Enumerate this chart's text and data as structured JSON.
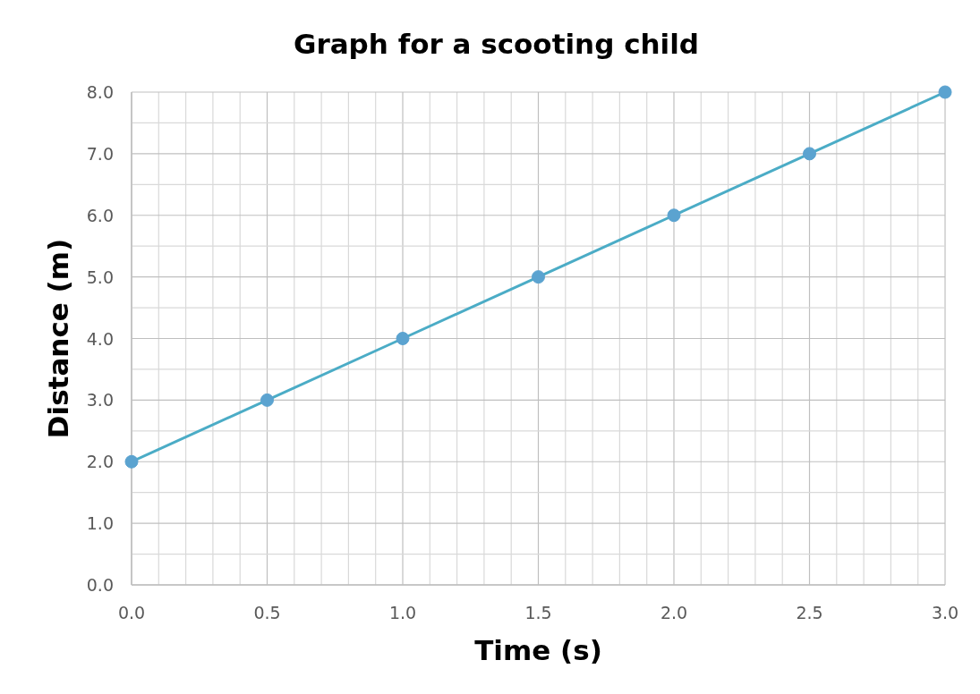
{
  "chart_data": {
    "type": "line",
    "title": "Graph for a scooting child",
    "xlabel": "Time (s)",
    "ylabel": "Distance (m)",
    "x": [
      0,
      0.5,
      1,
      1.5,
      2,
      2.5,
      3
    ],
    "series": [
      {
        "color": "#4bacc6",
        "values": [
          2,
          3,
          4,
          5,
          6,
          7,
          8
        ]
      }
    ],
    "xlim": [
      0,
      3
    ],
    "ylim": [
      0,
      8
    ],
    "xticks": [
      {
        "value": 0,
        "label": "0.0"
      },
      {
        "value": 0.1,
        "label": null
      },
      {
        "value": 0.2,
        "label": null
      },
      {
        "value": 0.3,
        "label": null
      },
      {
        "value": 0.4,
        "label": null
      },
      {
        "value": 0.5,
        "label": "0.5"
      },
      {
        "value": 0.6,
        "label": null
      },
      {
        "value": 0.7,
        "label": null
      },
      {
        "value": 0.8,
        "label": null
      },
      {
        "value": 0.9,
        "label": null
      },
      {
        "value": 1,
        "label": "1.0"
      },
      {
        "value": 1.1,
        "label": null
      },
      {
        "value": 1.2,
        "label": null
      },
      {
        "value": 1.3,
        "label": null
      },
      {
        "value": 1.4,
        "label": null
      },
      {
        "value": 1.5,
        "label": "1.5"
      },
      {
        "value": 1.6,
        "label": null
      },
      {
        "value": 1.7,
        "label": null
      },
      {
        "value": 1.8,
        "label": null
      },
      {
        "value": 1.9,
        "label": null
      },
      {
        "value": 2,
        "label": "2.0"
      },
      {
        "value": 2.1,
        "label": null
      },
      {
        "value": 2.2,
        "label": null
      },
      {
        "value": 2.3,
        "label": null
      },
      {
        "value": 2.4,
        "label": null
      },
      {
        "value": 2.5,
        "label": "2.5"
      },
      {
        "value": 2.6,
        "label": null
      },
      {
        "value": 2.7,
        "label": null
      },
      {
        "value": 2.8,
        "label": null
      },
      {
        "value": 2.9,
        "label": null
      },
      {
        "value": 3,
        "label": "3.0"
      }
    ],
    "yticks": [
      {
        "value": 0,
        "label": "0.0"
      },
      {
        "value": 0.5,
        "label": null
      },
      {
        "value": 1,
        "label": "1.0"
      },
      {
        "value": 1.5,
        "label": null
      },
      {
        "value": 2,
        "label": "2.0"
      },
      {
        "value": 2.5,
        "label": null
      },
      {
        "value": 3,
        "label": "3.0"
      },
      {
        "value": 3.5,
        "label": null
      },
      {
        "value": 4,
        "label": "4.0"
      },
      {
        "value": 4.5,
        "label": null
      },
      {
        "value": 5,
        "label": "5.0"
      },
      {
        "value": 5.5,
        "label": null
      },
      {
        "value": 6,
        "label": "6.0"
      },
      {
        "value": 6.5,
        "label": null
      },
      {
        "value": 7,
        "label": "7.0"
      },
      {
        "value": 7.5,
        "label": null
      },
      {
        "value": 8,
        "label": "8.0"
      }
    ],
    "grid": true,
    "marker": "circle",
    "line_style": "solid"
  }
}
